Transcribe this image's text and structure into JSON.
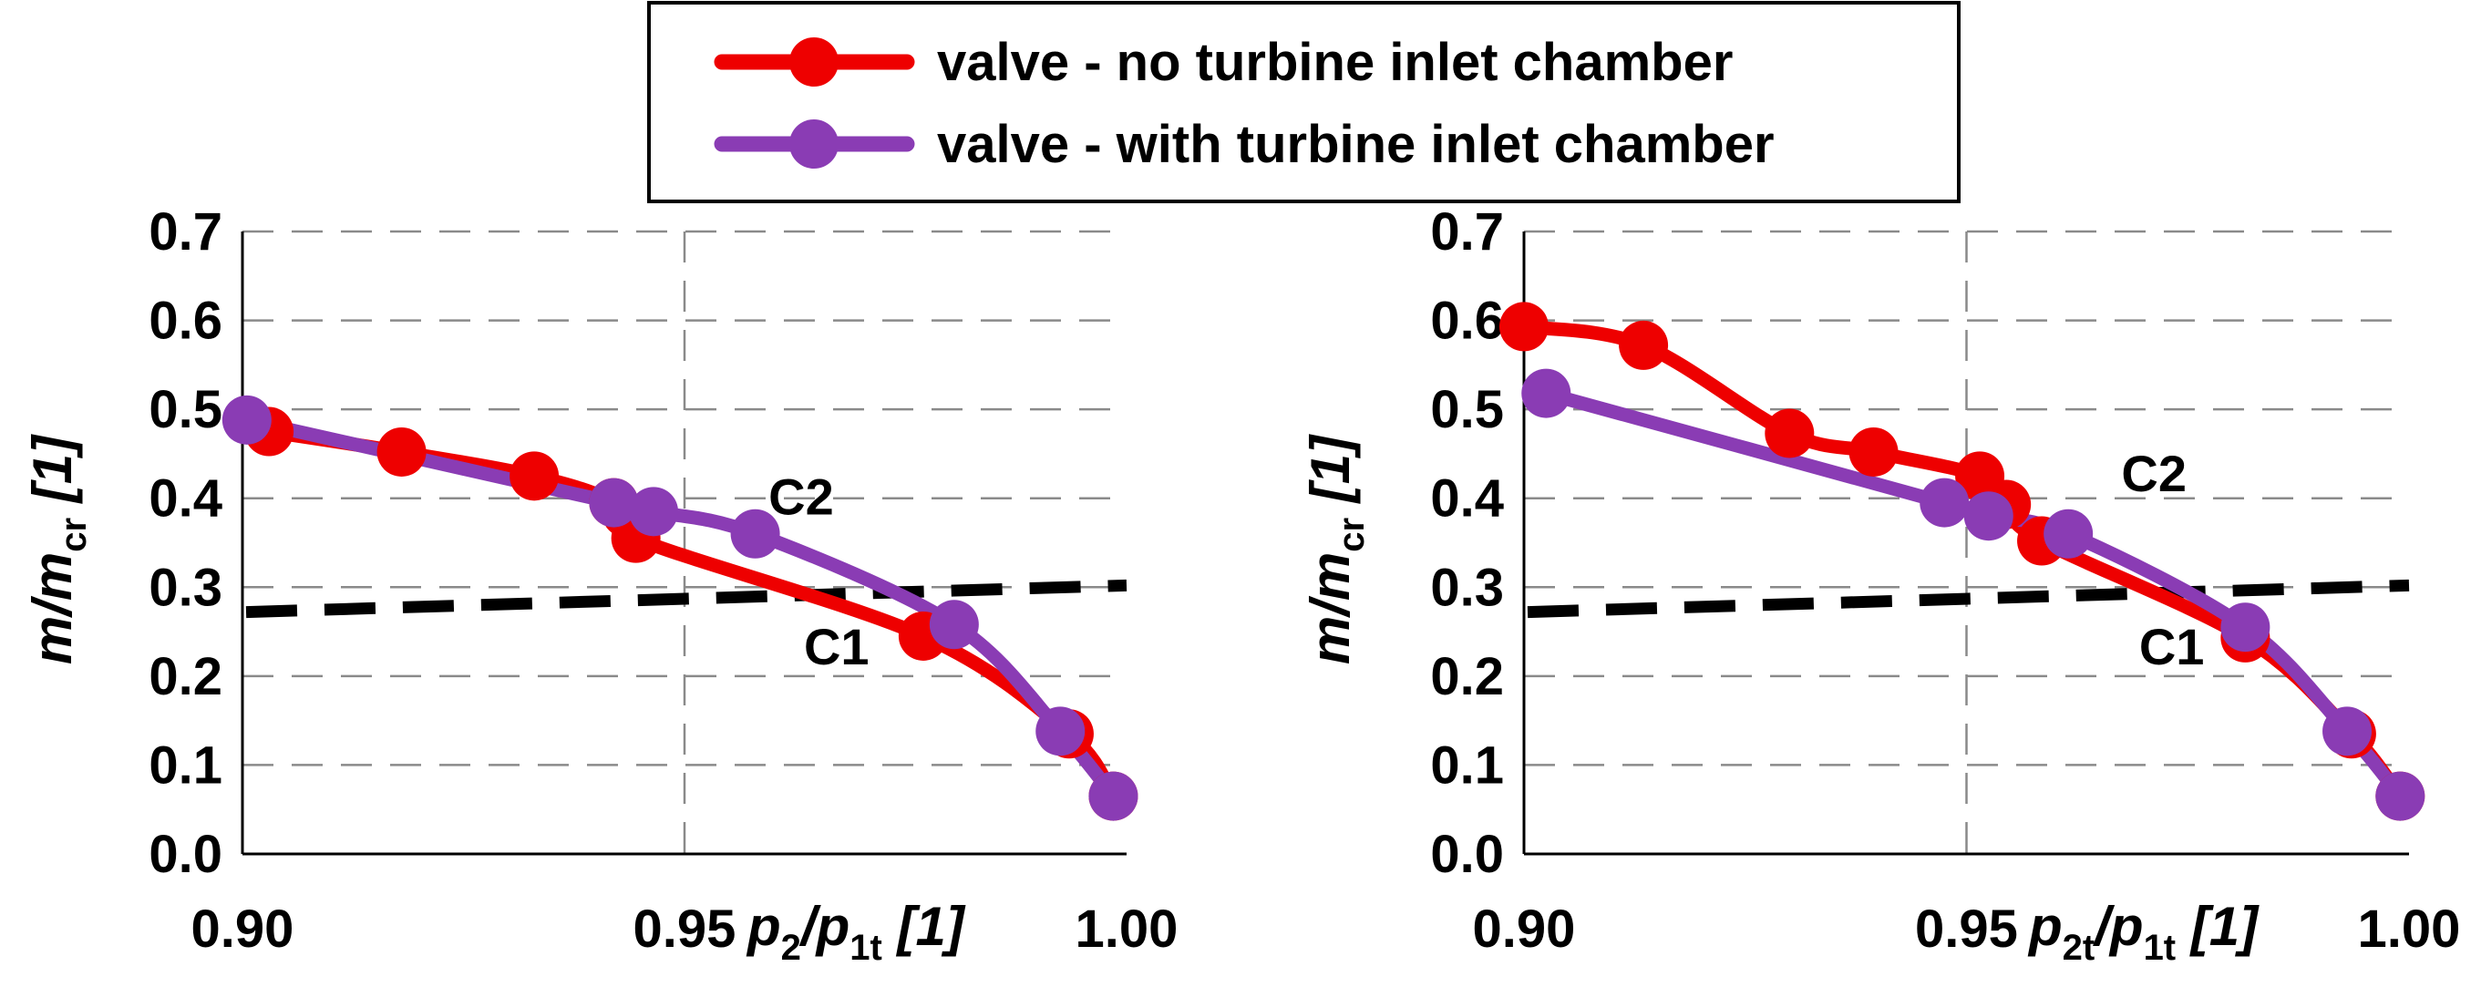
{
  "legend": {
    "items": [
      {
        "label": "valve - no turbine inlet chamber",
        "color": "#ee0000"
      },
      {
        "label": "valve - with turbine inlet chamber",
        "color": "#8a3cb4"
      }
    ]
  },
  "chart_data": [
    {
      "type": "line",
      "xlim": [
        0.9,
        1.0
      ],
      "ylim": [
        0.0,
        0.7
      ],
      "x_ticks": [
        "0.90",
        "0.95",
        "1.00"
      ],
      "x_tick_values": [
        0.9,
        0.95,
        1.0
      ],
      "y_ticks": [
        "0.0",
        "0.1",
        "0.2",
        "0.3",
        "0.4",
        "0.5",
        "0.6",
        "0.7"
      ],
      "y_tick_values": [
        0.0,
        0.1,
        0.2,
        0.3,
        0.4,
        0.5,
        0.6,
        0.7
      ],
      "grid": true,
      "xlabel": {
        "main": "p",
        "sub1": "2",
        "slash": "/",
        "main2": "p",
        "sub2": "1t",
        "unit": " [1]"
      },
      "ylabel": {
        "main": "m",
        "slash": "/",
        "main2": "m",
        "sub": "cr",
        "unit": " [1]"
      },
      "series": [
        {
          "name": "valve - no turbine inlet chamber",
          "color": "#ee0000",
          "x": [
            0.903,
            0.918,
            0.933,
            0.942,
            0.9445,
            0.977,
            0.9935,
            0.9985
          ],
          "y": [
            0.475,
            0.452,
            0.425,
            0.395,
            0.355,
            0.245,
            0.135,
            0.065
          ]
        },
        {
          "name": "valve - with turbine inlet chamber",
          "color": "#8a3cb4",
          "x": [
            0.9005,
            0.942,
            0.9465,
            0.958,
            0.9805,
            0.9925,
            0.9985
          ],
          "y": [
            0.488,
            0.395,
            0.385,
            0.36,
            0.258,
            0.138,
            0.065
          ]
        }
      ],
      "dashed_line": {
        "x": [
          0.9,
          1.0
        ],
        "y": [
          0.272,
          0.302
        ],
        "color": "#000000"
      },
      "annotations": [
        {
          "text": "C2",
          "x": 0.9595,
          "y": 0.382
        },
        {
          "text": "C1",
          "x": 0.9635,
          "y": 0.213
        }
      ]
    },
    {
      "type": "line",
      "xlim": [
        0.9,
        1.0
      ],
      "ylim": [
        0.0,
        0.7
      ],
      "x_ticks": [
        "0.90",
        "0.95",
        "1.00"
      ],
      "x_tick_values": [
        0.9,
        0.95,
        1.0
      ],
      "y_ticks": [
        "0.0",
        "0.1",
        "0.2",
        "0.3",
        "0.4",
        "0.5",
        "0.6",
        "0.7"
      ],
      "y_tick_values": [
        0.0,
        0.1,
        0.2,
        0.3,
        0.4,
        0.5,
        0.6,
        0.7
      ],
      "grid": true,
      "xlabel": {
        "main": "p",
        "sub1": "2t",
        "slash": "/",
        "main2": "p",
        "sub2": "1t",
        "unit": " [1]"
      },
      "ylabel": {
        "main": "m",
        "slash": "/",
        "main2": "m",
        "sub": "cr",
        "unit": " [1]"
      },
      "series": [
        {
          "name": "valve - no turbine inlet chamber",
          "color": "#ee0000",
          "x": [
            0.9,
            0.9135,
            0.93,
            0.9395,
            0.9515,
            0.9545,
            0.9585,
            0.9815,
            0.9935,
            0.999
          ],
          "y": [
            0.593,
            0.572,
            0.473,
            0.452,
            0.425,
            0.393,
            0.352,
            0.243,
            0.135,
            0.065
          ]
        },
        {
          "name": "valve - with turbine inlet chamber",
          "color": "#8a3cb4",
          "x": [
            0.9025,
            0.9475,
            0.9525,
            0.9615,
            0.9815,
            0.993,
            0.999
          ],
          "y": [
            0.518,
            0.395,
            0.38,
            0.36,
            0.255,
            0.138,
            0.065
          ]
        }
      ],
      "dashed_line": {
        "x": [
          0.9,
          1.0
        ],
        "y": [
          0.272,
          0.302
        ],
        "color": "#000000"
      },
      "annotations": [
        {
          "text": "C2",
          "x": 0.9675,
          "y": 0.408
        },
        {
          "text": "C1",
          "x": 0.9695,
          "y": 0.213
        }
      ]
    }
  ]
}
